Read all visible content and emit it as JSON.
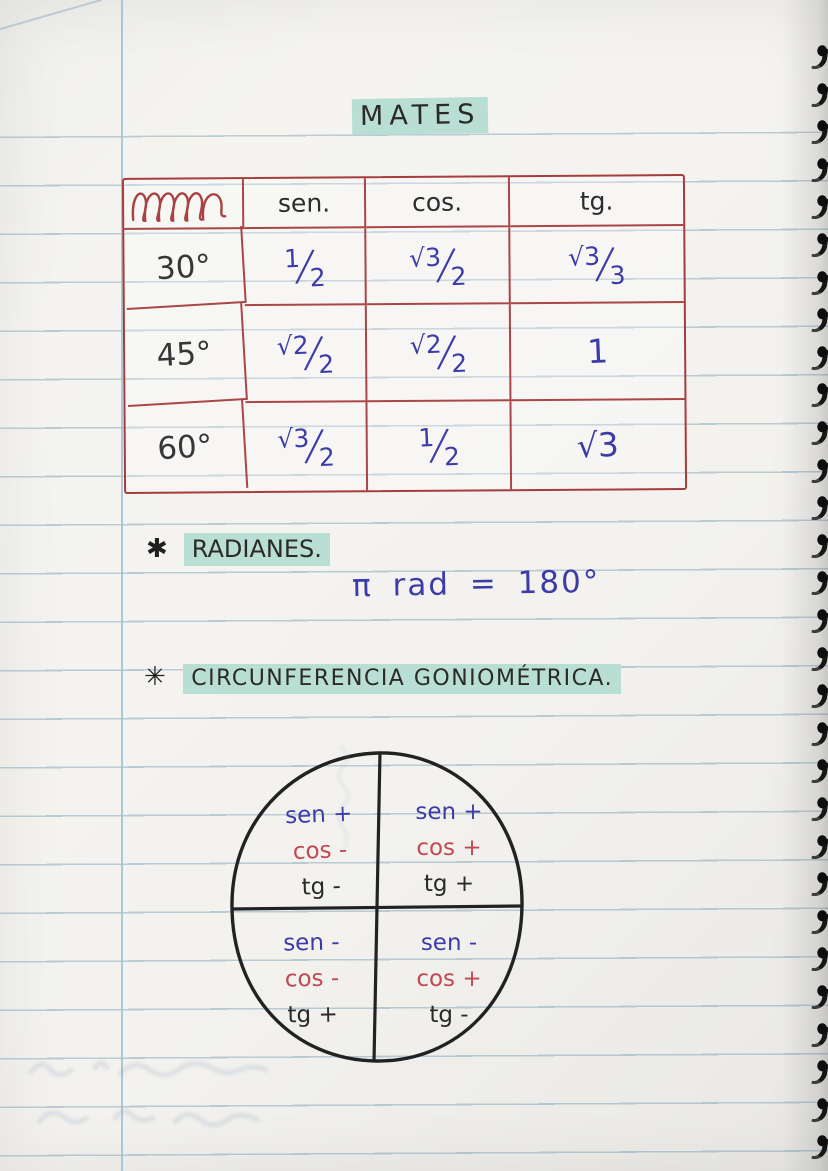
{
  "title": "MATES",
  "trig_table": {
    "col_headers": [
      "sen.",
      "cos.",
      "tg."
    ],
    "rows": [
      {
        "angle": "30°",
        "cells": [
          {
            "num": "1",
            "den": "2"
          },
          {
            "num": "√3",
            "den": "2"
          },
          {
            "num": "√3",
            "den": "3"
          }
        ]
      },
      {
        "angle": "45°",
        "cells": [
          {
            "num": "√2",
            "den": "2"
          },
          {
            "num": "√2",
            "den": "2"
          },
          {
            "num": "1",
            "den": ""
          }
        ]
      },
      {
        "angle": "60°",
        "cells": [
          {
            "num": "√3",
            "den": "2"
          },
          {
            "num": "1",
            "den": "2"
          },
          {
            "num": "√3",
            "den": ""
          }
        ]
      }
    ]
  },
  "radianes": {
    "bullet": "✱",
    "heading": "RADIANES.",
    "formula": "π rad = 180°"
  },
  "goniometrica": {
    "bullet": "✳",
    "heading": "CIRCUNFERENCIA GONIOMÉTRICA."
  },
  "unit_circle": {
    "quadrants": [
      {
        "position": "top-left",
        "lines": [
          "sen +",
          "cos -",
          "tg -"
        ]
      },
      {
        "position": "top-right",
        "lines": [
          "sen +",
          "cos +",
          "tg +"
        ]
      },
      {
        "position": "bottom-left",
        "lines": [
          "sen -",
          "cos -",
          "tg +"
        ]
      },
      {
        "position": "bottom-right",
        "lines": [
          "sen -",
          "cos +",
          "tg -"
        ]
      }
    ]
  },
  "colors": {
    "paper": "#f3f2ef",
    "rule_line": "#7a9eb1",
    "margin_line": "#9fc0d2",
    "table_border": "#a63c3c",
    "ink_black": "#2a2a2a",
    "ink_blue": "#3c3ca8",
    "ink_red": "#c24852",
    "highlight": "#b9dfd4",
    "spiral": "#161616"
  }
}
